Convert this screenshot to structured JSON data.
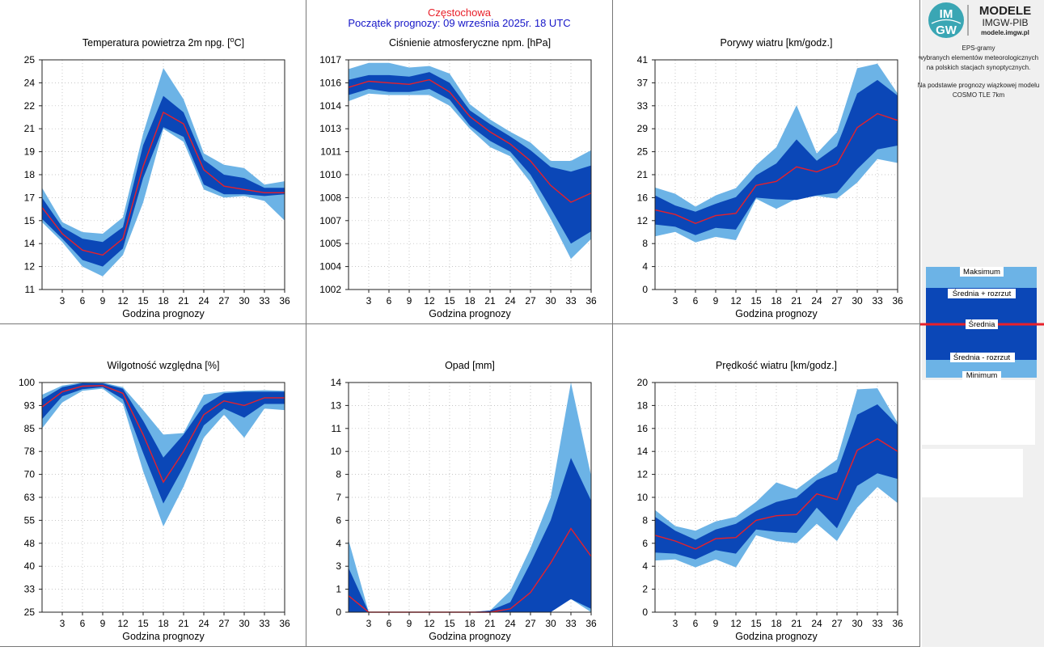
{
  "header": {
    "station": "Częstochowa",
    "forecast_start": "Początek prognozy: 09 września 2025r. 18 UTC"
  },
  "logo": {
    "monogram_top": "IM",
    "monogram_bottom": "GW",
    "title": "MODELE",
    "subtitle": "IMGW-PIB",
    "url": "modele.imgw.pl"
  },
  "description": [
    "EPS-gramy",
    "wybranych elementów meteorologicznych",
    "na polskich stacjach  synoptycznych.",
    "",
    "Na podstawie prognozy wiązkowej modelu",
    "COSMO TLE 7km"
  ],
  "legend": {
    "max": "Maksimum",
    "mean_plus": "Średnia + rozrzut",
    "mean": "Średnia",
    "mean_minus": "Średnia - rozrzut",
    "min": "Minimum"
  },
  "colors": {
    "outer_band": "#6cb3e6",
    "inner_band": "#0b47b7",
    "mean_line": "#e8202a",
    "station_title": "#e8202a",
    "forecast_title": "#1616c8"
  },
  "chart_data": [
    {
      "id": "temp",
      "type": "area",
      "title": "Temperatura powietrza 2m npg. [°C]",
      "title_main": "Temperatura powietrza 2m npg. [",
      "title_sup": "o",
      "title_end": "C]",
      "xlabel": "Godzina prognozy",
      "xlim": [
        0,
        36
      ],
      "ylim": [
        11,
        25
      ],
      "yticks": [
        "11",
        "12",
        "14",
        "15",
        "17",
        "18",
        "19",
        "21",
        "22",
        "24",
        "25"
      ],
      "x": [
        0,
        3,
        6,
        9,
        12,
        15,
        18,
        21,
        24,
        27,
        30,
        33,
        36
      ],
      "series": [
        {
          "role": "minimum",
          "values": [
            15.1,
            13.9,
            12.4,
            11.8,
            13.1,
            16.3,
            20.8,
            20.0,
            17.1,
            16.6,
            16.7,
            16.4,
            15.2
          ]
        },
        {
          "role": "mean-minus-spread",
          "values": [
            15.3,
            14.1,
            12.8,
            12.4,
            13.5,
            17.8,
            20.9,
            20.3,
            17.4,
            16.8,
            16.8,
            16.7,
            16.8
          ]
        },
        {
          "role": "mean",
          "values": [
            16.0,
            14.4,
            13.4,
            13.1,
            14.1,
            18.5,
            21.8,
            21.1,
            18.3,
            17.3,
            17.1,
            16.9,
            16.9
          ]
        },
        {
          "role": "mean-plus-spread",
          "values": [
            16.6,
            14.8,
            14.1,
            13.9,
            14.8,
            19.8,
            22.8,
            21.8,
            18.9,
            18.0,
            17.8,
            17.2,
            17.2
          ]
        },
        {
          "role": "maximum",
          "values": [
            17.2,
            15.1,
            14.5,
            14.4,
            15.4,
            20.5,
            24.5,
            22.6,
            19.3,
            18.6,
            18.4,
            17.4,
            17.6
          ]
        }
      ]
    },
    {
      "id": "pressure",
      "type": "area",
      "title": "Ciśnienie atmosferyczne npm. [hPa]",
      "xlabel": "Godzina prognozy",
      "xlim": [
        0,
        36
      ],
      "ylim": [
        1002,
        1017
      ],
      "yticks": [
        "1002",
        "1004",
        "1005",
        "1007",
        "1008",
        "1010",
        "1011",
        "1013",
        "1014",
        "1016",
        "1017"
      ],
      "x": [
        0,
        3,
        6,
        9,
        12,
        15,
        18,
        21,
        24,
        27,
        30,
        33,
        36
      ],
      "series": [
        {
          "role": "minimum",
          "values": [
            1014.3,
            1014.8,
            1014.7,
            1014.7,
            1014.7,
            1014.0,
            1012.5,
            1011.3,
            1010.7,
            1009.0,
            1006.6,
            1004.0,
            1005.3
          ]
        },
        {
          "role": "mean-minus-spread",
          "values": [
            1014.7,
            1015.1,
            1014.9,
            1014.9,
            1015.1,
            1014.4,
            1012.7,
            1011.7,
            1011.0,
            1009.5,
            1007.3,
            1005.0,
            1005.8
          ]
        },
        {
          "role": "mean",
          "values": [
            1015.2,
            1015.6,
            1015.5,
            1015.4,
            1015.7,
            1014.9,
            1013.3,
            1012.3,
            1011.5,
            1010.4,
            1008.8,
            1007.7,
            1008.3
          ]
        },
        {
          "role": "mean-plus-spread",
          "values": [
            1015.7,
            1016.0,
            1016.0,
            1015.9,
            1016.2,
            1015.5,
            1013.7,
            1012.8,
            1012.0,
            1011.1,
            1010.0,
            1009.7,
            1010.1
          ]
        },
        {
          "role": "maximum",
          "values": [
            1016.4,
            1016.8,
            1016.8,
            1016.5,
            1016.6,
            1016.1,
            1014.1,
            1013.1,
            1012.3,
            1011.6,
            1010.4,
            1010.4,
            1011.1
          ]
        }
      ]
    },
    {
      "id": "gusts",
      "type": "area",
      "title": "Porywy wiatru [km/godz.]",
      "xlabel": "Godzina prognozy",
      "xlim": [
        0,
        36
      ],
      "ylim": [
        0,
        41
      ],
      "yticks": [
        "0",
        "4",
        "8",
        "12",
        "16",
        "21",
        "25",
        "29",
        "33",
        "37",
        "41"
      ],
      "x": [
        0,
        3,
        6,
        9,
        12,
        15,
        18,
        21,
        24,
        27,
        30,
        33,
        36
      ],
      "series": [
        {
          "role": "minimum",
          "values": [
            9.5,
            10.3,
            8.4,
            9.4,
            8.8,
            16.2,
            14.4,
            16.2,
            16.7,
            16.2,
            19.1,
            23.3,
            22.6
          ]
        },
        {
          "role": "mean-minus-spread",
          "values": [
            11.6,
            11.2,
            9.7,
            11.0,
            10.7,
            16.4,
            16.1,
            16.0,
            16.8,
            17.3,
            21.5,
            25.0,
            25.7
          ]
        },
        {
          "role": "mean",
          "values": [
            14.2,
            13.4,
            11.8,
            13.2,
            13.6,
            18.6,
            19.3,
            21.9,
            21.0,
            22.4,
            28.9,
            31.4,
            30.2
          ]
        },
        {
          "role": "mean-plus-spread",
          "values": [
            16.8,
            15.0,
            13.9,
            15.3,
            16.5,
            20.4,
            22.5,
            26.8,
            23.0,
            25.6,
            35.0,
            37.4,
            34.6
          ]
        },
        {
          "role": "maximum",
          "values": [
            18.2,
            17.1,
            14.8,
            16.8,
            18.1,
            22.2,
            25.4,
            32.9,
            24.3,
            28.1,
            39.5,
            40.3,
            35.0
          ]
        }
      ]
    },
    {
      "id": "humidity",
      "type": "area",
      "title": "Wilgotność względna [%]",
      "xlabel": "Godzina prognozy",
      "xlim": [
        0,
        36
      ],
      "ylim": [
        25,
        100
      ],
      "yticks": [
        "25",
        "33",
        "40",
        "48",
        "55",
        "63",
        "70",
        "78",
        "85",
        "93",
        "100"
      ],
      "x": [
        0,
        3,
        6,
        9,
        12,
        15,
        18,
        21,
        24,
        27,
        30,
        33,
        36
      ],
      "series": [
        {
          "role": "minimum",
          "values": [
            85.0,
            93.5,
            97.3,
            98.0,
            93.0,
            71.0,
            53.0,
            66.0,
            82.0,
            89.5,
            82.0,
            91.5,
            91.0
          ]
        },
        {
          "role": "mean-minus-spread",
          "values": [
            88.0,
            95.5,
            97.8,
            98.5,
            94.5,
            77.0,
            60.5,
            72.5,
            86.0,
            91.5,
            88.5,
            93.0,
            93.0
          ]
        },
        {
          "role": "mean",
          "values": [
            92.0,
            97.0,
            98.8,
            99.0,
            96.5,
            83.0,
            67.5,
            77.5,
            89.5,
            94.0,
            92.5,
            95.0,
            95.0
          ]
        },
        {
          "role": "mean-plus-spread",
          "values": [
            94.5,
            98.5,
            99.8,
            99.7,
            98.0,
            87.5,
            75.5,
            83.0,
            92.5,
            96.5,
            97.0,
            97.0,
            97.0
          ]
        },
        {
          "role": "maximum",
          "values": [
            96.0,
            99.0,
            100.0,
            100.0,
            98.5,
            91.0,
            83.0,
            83.5,
            96.0,
            97.0,
            97.3,
            97.5,
            97.3
          ]
        }
      ]
    },
    {
      "id": "precip",
      "type": "area",
      "title": "Opad [mm]",
      "xlabel": "Godzina prognozy",
      "xlim": [
        0,
        36
      ],
      "ylim": [
        0,
        14
      ],
      "yticks": [
        "0",
        "1",
        "3",
        "4",
        "6",
        "7",
        "8",
        "10",
        "11",
        "13",
        "14"
      ],
      "x": [
        0,
        3,
        6,
        9,
        12,
        15,
        18,
        21,
        24,
        27,
        30,
        33,
        36
      ],
      "series": [
        {
          "role": "minimum",
          "values": [
            0.0,
            0.0,
            0.0,
            0.0,
            0.0,
            0.0,
            0.0,
            0.0,
            0.0,
            0.0,
            0.1,
            0.8,
            0.0
          ]
        },
        {
          "role": "mean-minus-spread",
          "values": [
            0.0,
            0.0,
            0.0,
            0.0,
            0.0,
            0.0,
            0.0,
            0.0,
            0.0,
            0.0,
            0.0,
            0.8,
            0.2
          ]
        },
        {
          "role": "mean",
          "values": [
            1.0,
            0.0,
            0.0,
            0.0,
            0.0,
            0.0,
            0.0,
            0.0,
            0.2,
            1.2,
            3.0,
            5.1,
            3.4
          ]
        },
        {
          "role": "mean-plus-spread",
          "values": [
            2.7,
            0.0,
            0.0,
            0.0,
            0.0,
            0.0,
            0.0,
            0.1,
            0.6,
            3.0,
            5.6,
            9.4,
            6.8
          ]
        },
        {
          "role": "maximum",
          "values": [
            4.4,
            0.0,
            0.0,
            0.0,
            0.0,
            0.0,
            0.0,
            0.1,
            1.3,
            3.9,
            7.0,
            14.0,
            8.3
          ]
        }
      ]
    },
    {
      "id": "wind",
      "type": "area",
      "title": "Prędkość wiatru [km/godz.]",
      "xlabel": "Godzina prognozy",
      "xlim": [
        0,
        36
      ],
      "ylim": [
        0,
        20
      ],
      "yticks": [
        "0",
        "2",
        "4",
        "6",
        "8",
        "10",
        "12",
        "14",
        "16",
        "18",
        "20"
      ],
      "x": [
        0,
        3,
        6,
        9,
        12,
        15,
        18,
        21,
        24,
        27,
        30,
        33,
        36
      ],
      "series": [
        {
          "role": "minimum",
          "values": [
            4.5,
            4.6,
            3.9,
            4.6,
            3.9,
            6.7,
            6.2,
            6.0,
            7.7,
            6.2,
            9.1,
            10.9,
            9.5
          ]
        },
        {
          "role": "mean-minus-spread",
          "values": [
            5.2,
            5.1,
            4.6,
            5.4,
            5.1,
            7.2,
            7.0,
            6.9,
            9.1,
            7.3,
            11.0,
            12.1,
            11.6
          ]
        },
        {
          "role": "mean",
          "values": [
            6.7,
            6.2,
            5.5,
            6.4,
            6.5,
            8.0,
            8.4,
            8.5,
            10.3,
            9.8,
            14.1,
            15.1,
            14.0
          ]
        },
        {
          "role": "mean-plus-spread",
          "values": [
            8.3,
            7.1,
            6.3,
            7.2,
            7.7,
            8.8,
            9.6,
            10.0,
            11.5,
            12.2,
            17.2,
            18.1,
            16.3
          ]
        },
        {
          "role": "maximum",
          "values": [
            8.9,
            7.5,
            7.1,
            7.9,
            8.3,
            9.6,
            11.3,
            10.7,
            12.0,
            13.3,
            19.4,
            19.5,
            16.5
          ]
        }
      ]
    }
  ]
}
